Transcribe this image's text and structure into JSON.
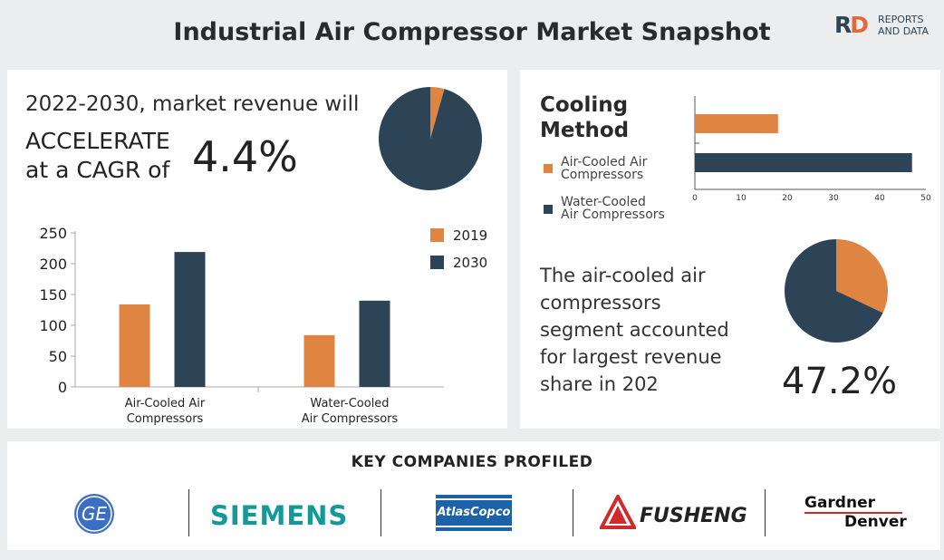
{
  "header": {
    "title": "Industrial Air Compressor Market Snapshot"
  },
  "logo": {
    "rd": [
      "R",
      "D"
    ],
    "line1": "REPORTS",
    "line2": "AND DATA"
  },
  "revenue": {
    "line1": "2022-2030, market revenue will",
    "line2a": "ACCELERATE",
    "line2b": "at a CAGR of",
    "cagr": "4.4%"
  },
  "cooling": {
    "title_line1": "Cooling",
    "title_line2": "Method",
    "legend": [
      {
        "line1": "Air-Cooled Air",
        "line2": "Compressors",
        "color": "#e08442"
      },
      {
        "line1": "Water-Cooled",
        "line2": "Air Compressors",
        "color": "#2c4456"
      }
    ]
  },
  "share": {
    "text_lines": [
      "The air-cooled air",
      "compressors",
      "segment accounted",
      "for largest revenue",
      "share in 202"
    ],
    "value": "47.2%"
  },
  "companies": {
    "title": "KEY COMPANIES PROFILED",
    "logos": [
      {
        "name": "ge",
        "text": "GE"
      },
      {
        "name": "siemens",
        "text": "SIEMENS"
      },
      {
        "name": "atlas-copco",
        "text": "AtlasCopco"
      },
      {
        "name": "fusheng",
        "text": "FUSHENG"
      },
      {
        "name": "gardner-denver",
        "line1": "Gardner",
        "line2": "Denver"
      }
    ]
  },
  "chart_data": [
    {
      "type": "pie",
      "slices": [
        {
          "value": 95.6,
          "color": "#2c4456"
        },
        {
          "value": 4.4,
          "color": "#e08442"
        }
      ]
    },
    {
      "type": "bar",
      "categories": [
        [
          "Air-Cooled Air",
          "Compressors"
        ],
        [
          "Water-Cooled",
          "Air Compressors"
        ]
      ],
      "series": [
        {
          "name": "2019",
          "values": [
            134,
            84
          ],
          "color": "#e08442"
        },
        {
          "name": "2030",
          "values": [
            219,
            140
          ],
          "color": "#2c4456"
        }
      ],
      "ylim": [
        0,
        250
      ],
      "yticks": [
        0,
        50,
        100,
        150,
        200,
        250
      ],
      "legend": "right"
    },
    {
      "type": "bar",
      "orientation": "horizontal",
      "values": [
        18,
        47
      ],
      "colors": [
        "#e08442",
        "#2c4456"
      ],
      "xlim": [
        0,
        50
      ],
      "xticks": [
        0,
        10,
        20,
        30,
        40,
        50
      ]
    },
    {
      "type": "pie",
      "slices": [
        {
          "value": 32,
          "color": "#e08442"
        },
        {
          "value": 68,
          "color": "#2c4456"
        }
      ]
    }
  ]
}
